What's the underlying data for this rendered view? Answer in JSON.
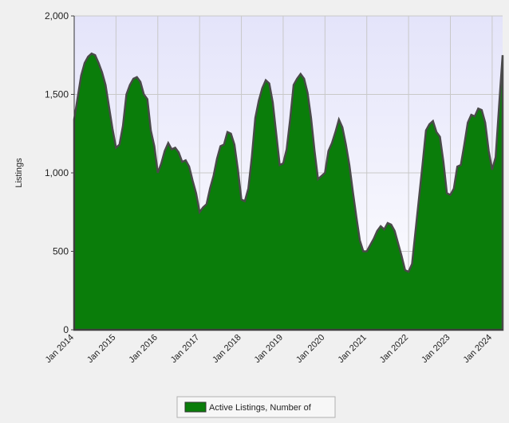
{
  "chart_data": {
    "type": "area",
    "y_label": "Listings",
    "categories": [
      "Jan 2014",
      null,
      null,
      null,
      null,
      null,
      null,
      null,
      null,
      null,
      null,
      null,
      "Jan 2015",
      null,
      null,
      null,
      null,
      null,
      null,
      null,
      null,
      null,
      null,
      null,
      "Jan 2016",
      null,
      null,
      null,
      null,
      null,
      null,
      null,
      null,
      null,
      null,
      null,
      "Jan 2017",
      null,
      null,
      null,
      null,
      null,
      null,
      null,
      null,
      null,
      null,
      null,
      "Jan 2018",
      null,
      null,
      null,
      null,
      null,
      null,
      null,
      null,
      null,
      null,
      null,
      "Jan 2019",
      null,
      null,
      null,
      null,
      null,
      null,
      null,
      null,
      null,
      null,
      null,
      "Jan 2020",
      null,
      null,
      null,
      null,
      null,
      null,
      null,
      null,
      null,
      null,
      null,
      "Jan 2021",
      null,
      null,
      null,
      null,
      null,
      null,
      null,
      null,
      null,
      null,
      null,
      "Jan 2022",
      null,
      null,
      null,
      null,
      null,
      null,
      null,
      null,
      null,
      null,
      null,
      "Jan 2023",
      null,
      null,
      null,
      null,
      null,
      null,
      null,
      null,
      null,
      null,
      null,
      "Jan 2024",
      null,
      null,
      null
    ],
    "series": [
      {
        "name": "Active Listings, Number of",
        "color": "#0a7d0a",
        "values": [
          1340,
          1480,
          1620,
          1700,
          1740,
          1760,
          1750,
          1700,
          1640,
          1560,
          1420,
          1280,
          1160,
          1180,
          1300,
          1500,
          1560,
          1600,
          1610,
          1580,
          1500,
          1470,
          1270,
          1170,
          1000,
          1060,
          1140,
          1190,
          1150,
          1160,
          1130,
          1070,
          1080,
          1040,
          950,
          870,
          750,
          780,
          800,
          900,
          980,
          1090,
          1170,
          1180,
          1260,
          1250,
          1180,
          1020,
          830,
          820,
          900,
          1100,
          1350,
          1460,
          1540,
          1590,
          1570,
          1450,
          1250,
          1050,
          1060,
          1150,
          1340,
          1560,
          1600,
          1630,
          1600,
          1510,
          1350,
          1140,
          960,
          980,
          1000,
          1140,
          1190,
          1260,
          1340,
          1290,
          1180,
          1050,
          880,
          720,
          570,
          500,
          500,
          540,
          580,
          630,
          660,
          640,
          680,
          670,
          630,
          550,
          470,
          380,
          370,
          420,
          630,
          840,
          1050,
          1270,
          1310,
          1330,
          1260,
          1230,
          1070,
          870,
          860,
          900,
          1040,
          1050,
          1180,
          1320,
          1370,
          1360,
          1410,
          1400,
          1320,
          1140,
          1020,
          1100,
          1430,
          1750
        ]
      }
    ],
    "ylim": [
      0,
      2000
    ],
    "yticks": [
      0,
      500,
      {
        "value": 1000,
        "label": "1,000"
      },
      {
        "value": 1500,
        "label": "1,500"
      },
      {
        "value": 2000,
        "label": "2,000"
      }
    ],
    "grid": true
  }
}
